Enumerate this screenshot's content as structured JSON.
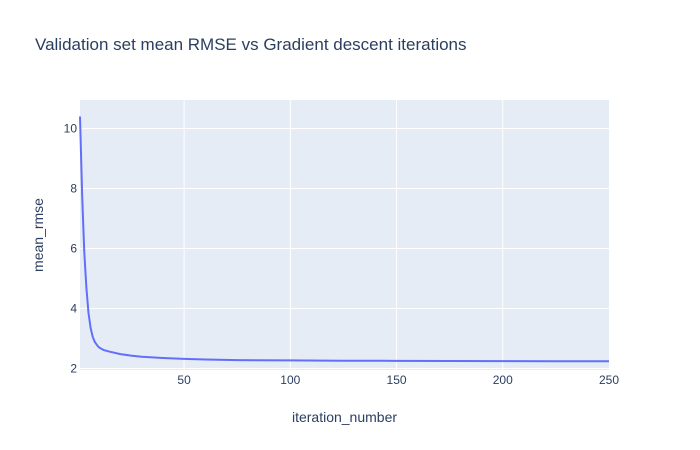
{
  "chart_data": {
    "type": "line",
    "title": "Validation set mean RMSE vs Gradient descent iterations",
    "xlabel": "iteration_number",
    "ylabel": "mean_rmse",
    "xlim": [
      1,
      250
    ],
    "ylim": [
      1.95,
      10.95
    ],
    "x_ticks": [
      50,
      100,
      150,
      200,
      250
    ],
    "y_ticks": [
      2,
      4,
      6,
      8,
      10
    ],
    "grid": true,
    "legend": "none",
    "colors": {
      "line": "#636efa",
      "plot_bg": "#e5ecf6",
      "grid": "#ffffff",
      "text": "#2a3f5f"
    },
    "series": [
      {
        "x": [
          1,
          2,
          3,
          4,
          5,
          6,
          7,
          8,
          9,
          10,
          12,
          15,
          20,
          25,
          30,
          40,
          50,
          60,
          75,
          100,
          125,
          150,
          175,
          200,
          225,
          250
        ],
        "values": [
          10.4,
          7.8,
          5.9,
          4.7,
          3.85,
          3.35,
          3.05,
          2.88,
          2.78,
          2.7,
          2.62,
          2.56,
          2.48,
          2.43,
          2.39,
          2.35,
          2.32,
          2.3,
          2.28,
          2.27,
          2.26,
          2.255,
          2.25,
          2.245,
          2.24,
          2.24
        ]
      }
    ]
  }
}
